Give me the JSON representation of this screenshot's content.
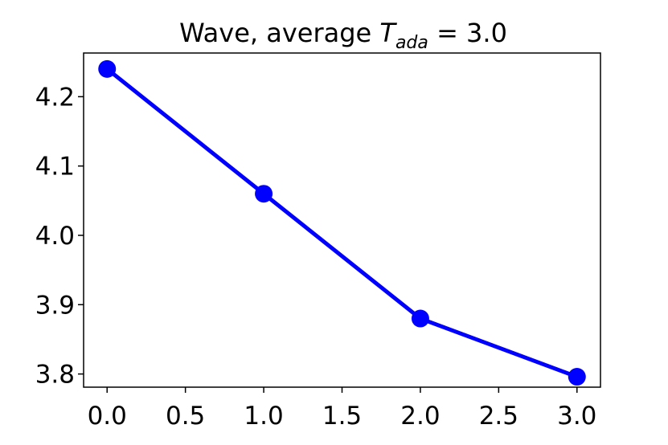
{
  "chart_data": {
    "type": "line",
    "title": {
      "prefix": "Wave, average ",
      "var": "T",
      "sub": "ada",
      "suffix": " = 3.0"
    },
    "xlabel": "",
    "ylabel": "",
    "x": [
      0.0,
      1.0,
      2.0,
      3.0
    ],
    "series": [
      {
        "values": [
          4.24,
          4.06,
          3.88,
          3.796
        ],
        "color": "#0000ff",
        "marker": "circle"
      }
    ],
    "xlim": [
      -0.15,
      3.15
    ],
    "ylim": [
      3.781,
      4.263
    ],
    "xticks": [
      0.0,
      0.5,
      1.0,
      1.5,
      2.0,
      2.5,
      3.0
    ],
    "xtick_labels": [
      "0.0",
      "0.5",
      "1.0",
      "1.5",
      "2.0",
      "2.5",
      "3.0"
    ],
    "yticks": [
      3.8,
      3.9,
      4.0,
      4.1,
      4.2
    ],
    "ytick_labels": [
      "3.8",
      "3.9",
      "4.0",
      "4.1",
      "4.2"
    ],
    "grid": false,
    "legend": "none"
  }
}
